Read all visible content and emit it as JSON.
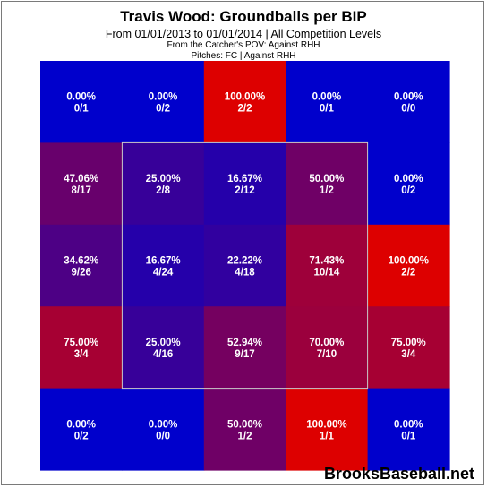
{
  "header": {
    "title": "Travis Wood: Groundballs per BIP",
    "subtitle": "From 01/01/2013 to 01/01/2014 | All Competition Levels",
    "pov": "From the Catcher's POV:  Against RHH",
    "pitches": "Pitches:  FC  |  Against RHH"
  },
  "watermark": "BrooksBaseball.net",
  "chart_data": {
    "type": "heatmap",
    "title": "Travis Wood: Groundballs per BIP",
    "rows": 5,
    "cols": 5,
    "strike_zone": "inner 3x3 cells",
    "color_scale": {
      "low": "#0000cc",
      "high": "#dd0000"
    },
    "cells": [
      [
        {
          "pct": "0.00%",
          "frac": "0/1",
          "value": 0.0
        },
        {
          "pct": "0.00%",
          "frac": "0/2",
          "value": 0.0
        },
        {
          "pct": "100.00%",
          "frac": "2/2",
          "value": 1.0
        },
        {
          "pct": "0.00%",
          "frac": "0/1",
          "value": 0.0
        },
        {
          "pct": "0.00%",
          "frac": "0/0",
          "value": 0.0
        }
      ],
      [
        {
          "pct": "47.06%",
          "frac": "8/17",
          "value": 0.4706
        },
        {
          "pct": "25.00%",
          "frac": "2/8",
          "value": 0.25
        },
        {
          "pct": "16.67%",
          "frac": "2/12",
          "value": 0.1667
        },
        {
          "pct": "50.00%",
          "frac": "1/2",
          "value": 0.5
        },
        {
          "pct": "0.00%",
          "frac": "0/2",
          "value": 0.0
        }
      ],
      [
        {
          "pct": "34.62%",
          "frac": "9/26",
          "value": 0.3462
        },
        {
          "pct": "16.67%",
          "frac": "4/24",
          "value": 0.1667
        },
        {
          "pct": "22.22%",
          "frac": "4/18",
          "value": 0.2222
        },
        {
          "pct": "71.43%",
          "frac": "10/14",
          "value": 0.7143
        },
        {
          "pct": "100.00%",
          "frac": "2/2",
          "value": 1.0
        }
      ],
      [
        {
          "pct": "75.00%",
          "frac": "3/4",
          "value": 0.75
        },
        {
          "pct": "25.00%",
          "frac": "4/16",
          "value": 0.25
        },
        {
          "pct": "52.94%",
          "frac": "9/17",
          "value": 0.5294
        },
        {
          "pct": "70.00%",
          "frac": "7/10",
          "value": 0.7
        },
        {
          "pct": "75.00%",
          "frac": "3/4",
          "value": 0.75
        }
      ],
      [
        {
          "pct": "0.00%",
          "frac": "0/2",
          "value": 0.0
        },
        {
          "pct": "0.00%",
          "frac": "0/0",
          "value": 0.0
        },
        {
          "pct": "50.00%",
          "frac": "1/2",
          "value": 0.5
        },
        {
          "pct": "100.00%",
          "frac": "1/1",
          "value": 1.0
        },
        {
          "pct": "0.00%",
          "frac": "0/1",
          "value": 0.0
        }
      ]
    ]
  }
}
